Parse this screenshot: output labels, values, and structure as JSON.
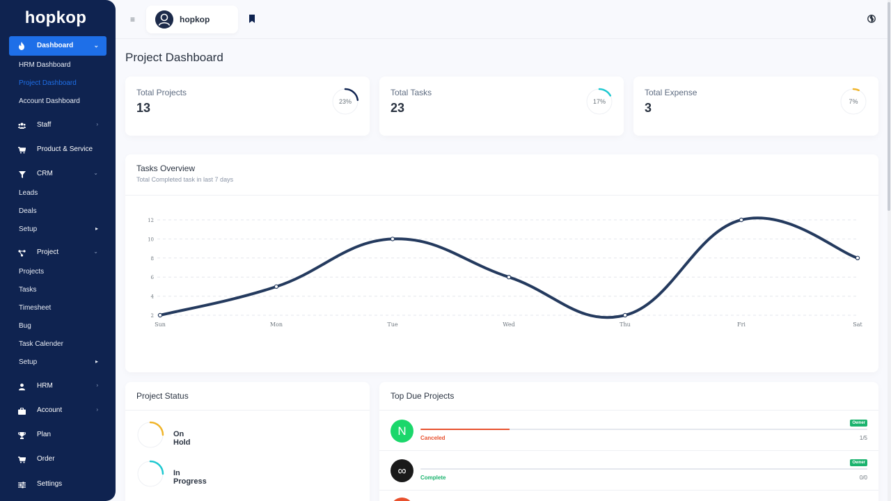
{
  "app": {
    "brand": "hopkop"
  },
  "sidebar": {
    "active": {
      "label": "Dashboard",
      "icon": "fire-icon"
    },
    "dashboard_sub": [
      "HRM Dashboard",
      "Project Dashboard",
      "Account Dashboard"
    ],
    "staff": "Staff",
    "product": "Product & Service",
    "crm": "CRM",
    "crm_sub": [
      "Leads",
      "Deals",
      "Setup"
    ],
    "project": "Project",
    "project_sub": [
      "Projects",
      "Tasks",
      "Timesheet",
      "Bug",
      "Task Calender",
      "Setup"
    ],
    "hrm": "HRM",
    "account": "Account",
    "plan": "Plan",
    "order": "Order",
    "settings": "Settings"
  },
  "topbar": {
    "user_name": "hopkop"
  },
  "page": {
    "title": "Project Dashboard"
  },
  "stats": [
    {
      "label": "Total Projects",
      "value": "13",
      "percent_label": "23%",
      "percent": 23,
      "color": "#0f2350"
    },
    {
      "label": "Total Tasks",
      "value": "23",
      "percent_label": "17%",
      "percent": 17,
      "color": "#1ec8d0"
    },
    {
      "label": "Total Expense",
      "value": "3",
      "percent_label": "7%",
      "percent": 7,
      "color": "#f0b429"
    }
  ],
  "tasks_overview": {
    "title": "Tasks Overview",
    "subtitle": "Total Completed task in last 7 days"
  },
  "chart_data": {
    "type": "line",
    "categories": [
      "Sun",
      "Mon",
      "Tue",
      "Wed",
      "Thu",
      "Fri",
      "Sat"
    ],
    "values": [
      2,
      5,
      10,
      6,
      2,
      12,
      8
    ],
    "yticks": [
      2,
      4,
      6,
      8,
      10,
      12
    ],
    "ylim": [
      2,
      12
    ],
    "color": "#243a5e",
    "grid": true
  },
  "project_status": {
    "title": "Project Status",
    "items": [
      {
        "label": "On Hold",
        "percent": 25,
        "color": "#f0b429"
      },
      {
        "label": "In Progress",
        "percent": 25,
        "color": "#1ec8d0"
      }
    ]
  },
  "top_due": {
    "title": "Top Due Projects",
    "items": [
      {
        "logo": "N",
        "logo_bg": "#1bd76b",
        "status": "Canceled",
        "status_color": "#e8502d",
        "progress": 20,
        "count": "1/5",
        "badge": "Owner"
      },
      {
        "logo": "∞",
        "logo_bg": "#1a1a1a",
        "status": "Complete",
        "status_color": "#1bb36e",
        "progress": 0,
        "count": "0/0",
        "badge": "Owner"
      }
    ]
  }
}
